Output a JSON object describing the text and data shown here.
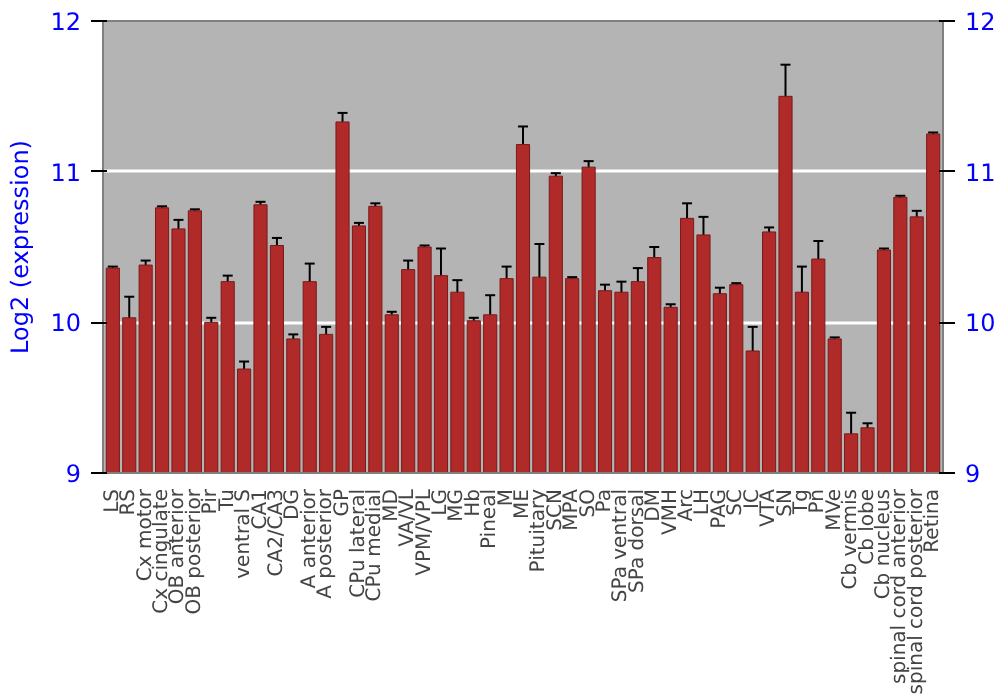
{
  "chart_data": {
    "type": "bar",
    "ylabel": "Log2 (expression)",
    "categories": [
      "LS",
      "RS",
      "Cx motor",
      "Cx cingulate",
      "OB anterior",
      "OB posterior",
      "Pir",
      "Tu",
      "ventral S",
      "CA1",
      "CA2/CA3",
      "DG",
      "A anterior",
      "A posterior",
      "GP",
      "CPu lateral",
      "CPu medial",
      "MD",
      "VA/VL",
      "VPM/VPL",
      "LG",
      "MG",
      "Hb",
      "Pineal",
      "M",
      "ME",
      "Pituitary",
      "SCN",
      "MPA",
      "SO",
      "Pa",
      "SPa ventral",
      "SPa dorsal",
      "DM",
      "VMH",
      "Arc",
      "LH",
      "PAG",
      "SC",
      "IC",
      "VTA",
      "SN",
      "Tg",
      "Pn",
      "MVe",
      "Cb vermis",
      "Cb lobe",
      "Cb nucleus",
      "spinal cord anterior",
      "spinal cord posterior",
      "Retina"
    ],
    "values": [
      10.36,
      10.03,
      10.38,
      10.76,
      10.62,
      10.74,
      10.0,
      10.27,
      9.69,
      10.78,
      10.51,
      9.89,
      10.27,
      9.92,
      11.33,
      10.64,
      10.77,
      10.05,
      10.35,
      10.5,
      10.31,
      10.2,
      10.01,
      10.05,
      10.29,
      11.18,
      10.3,
      10.97,
      10.29,
      11.03,
      10.21,
      10.2,
      10.27,
      10.43,
      10.1,
      10.69,
      10.58,
      10.19,
      10.25,
      9.81,
      10.6,
      11.5,
      10.2,
      10.42,
      9.89,
      9.26,
      9.3,
      10.48,
      10.83,
      10.7,
      11.25
    ],
    "errors": [
      0.01,
      0.14,
      0.03,
      0.01,
      0.06,
      0.01,
      0.03,
      0.04,
      0.05,
      0.02,
      0.05,
      0.03,
      0.12,
      0.05,
      0.06,
      0.02,
      0.02,
      0.02,
      0.06,
      0.01,
      0.18,
      0.08,
      0.02,
      0.13,
      0.08,
      0.12,
      0.22,
      0.02,
      0.01,
      0.04,
      0.04,
      0.07,
      0.09,
      0.07,
      0.02,
      0.1,
      0.12,
      0.04,
      0.01,
      0.16,
      0.03,
      0.21,
      0.17,
      0.12,
      0.01,
      0.14,
      0.03,
      0.01,
      0.01,
      0.04,
      0.01
    ],
    "color": "#b02a2a",
    "ylim": [
      9,
      12
    ],
    "yticks": [
      9,
      10,
      11,
      12
    ],
    "y2lim": [
      9,
      12
    ],
    "y2ticks": [
      9,
      10,
      11,
      12
    ],
    "grid": "y"
  }
}
